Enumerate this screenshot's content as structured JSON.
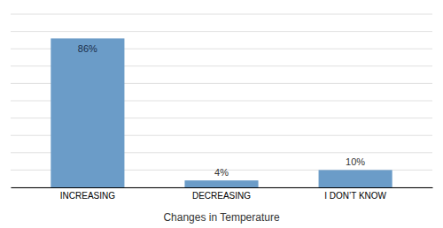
{
  "chart_data": {
    "type": "bar",
    "xlabel": "Changes in Temperature",
    "categories": [
      "INCREASING",
      "DECREASING",
      "I DON’T KNOW"
    ],
    "values": [
      86,
      4,
      10
    ],
    "value_labels": [
      "86%",
      "4%",
      "10%"
    ],
    "data_labels": true,
    "color": "#6b9cc8",
    "ylim": [
      0,
      100
    ],
    "yticks": [
      0,
      10,
      20,
      30,
      40,
      50,
      60,
      70,
      80,
      90,
      100
    ],
    "grid": true,
    "tick_labels": "x"
  }
}
